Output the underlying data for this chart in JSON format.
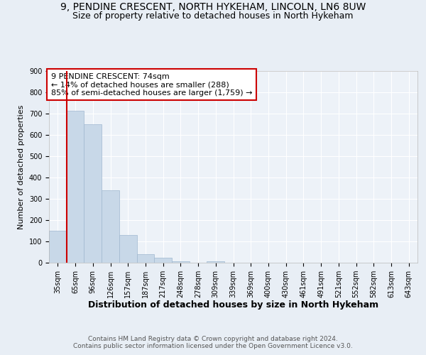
{
  "title_line1": "9, PENDINE CRESCENT, NORTH HYKEHAM, LINCOLN, LN6 8UW",
  "title_line2": "Size of property relative to detached houses in North Hykeham",
  "xlabel": "Distribution of detached houses by size in North Hykeham",
  "ylabel": "Number of detached properties",
  "categories": [
    "35sqm",
    "65sqm",
    "96sqm",
    "126sqm",
    "157sqm",
    "187sqm",
    "217sqm",
    "248sqm",
    "278sqm",
    "309sqm",
    "339sqm",
    "369sqm",
    "400sqm",
    "430sqm",
    "461sqm",
    "491sqm",
    "521sqm",
    "552sqm",
    "582sqm",
    "613sqm",
    "643sqm"
  ],
  "values": [
    150,
    715,
    650,
    340,
    130,
    40,
    25,
    8,
    0,
    8,
    0,
    0,
    0,
    0,
    0,
    0,
    0,
    0,
    0,
    0,
    0
  ],
  "bar_color": "#c8d8e8",
  "bar_edge_color": "#a0b8d0",
  "vline_color": "#cc0000",
  "annotation_text": "9 PENDINE CRESCENT: 74sqm\n← 14% of detached houses are smaller (288)\n85% of semi-detached houses are larger (1,759) →",
  "annotation_box_color": "#ffffff",
  "annotation_box_edge": "#cc0000",
  "ylim": [
    0,
    900
  ],
  "yticks": [
    0,
    100,
    200,
    300,
    400,
    500,
    600,
    700,
    800,
    900
  ],
  "footer_text": "Contains HM Land Registry data © Crown copyright and database right 2024.\nContains public sector information licensed under the Open Government Licence v3.0.",
  "bg_color": "#e8eef5",
  "plot_bg_color": "#edf2f8",
  "grid_color": "#ffffff",
  "title_fontsize": 10,
  "subtitle_fontsize": 9,
  "ylabel_fontsize": 8,
  "xlabel_fontsize": 9,
  "tick_fontsize": 7,
  "annotation_fontsize": 8,
  "footer_fontsize": 6.5
}
